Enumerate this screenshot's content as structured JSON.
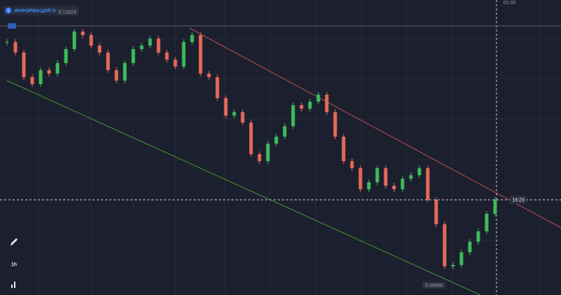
{
  "header": {
    "info": "ИНФОРМАЦИЯ О ПАРЕ"
  },
  "chart": {
    "high": 5.13329,
    "low": {
      "value": 5.0888,
      "label": "5.08880"
    },
    "timer": "16:29",
    "time_label": "01:00",
    "close": [
      5.13044,
      5.12859,
      5.12426,
      5.12303,
      5.1255,
      5.12488,
      5.12674,
      5.12921,
      5.1323,
      5.13168,
      5.12983,
      5.12859,
      5.1255,
      5.12365,
      5.12674,
      5.12921,
      5.12983,
      5.13106,
      5.12859,
      5.12735,
      5.12612,
      5.13044,
      5.13168,
      5.12488,
      5.12426,
      5.12056,
      5.11747,
      5.11808,
      5.11623,
      5.11067,
      5.10943,
      5.11252,
      5.11376,
      5.11561,
      5.11932,
      5.1187,
      5.11994,
      5.12117,
      5.11808,
      5.11376,
      5.10943,
      5.1082,
      5.10449,
      5.10572,
      5.1082,
      5.10511,
      5.10449,
      5.10634,
      5.10696,
      5.1082,
      5.10263,
      5.09831,
      5.09089,
      5.09114,
      5.09336,
      5.09522,
      5.09707,
      5.10016,
      5.10263
    ]
  },
  "toolbar": {
    "timeframe": "1h"
  }
}
